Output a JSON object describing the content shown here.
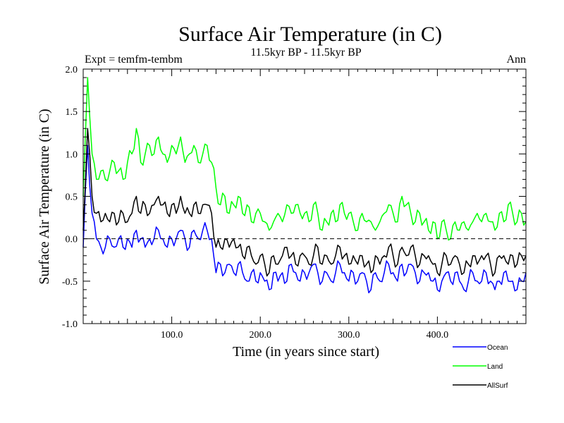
{
  "chart_data": {
    "type": "line",
    "title": "Surface Air Temperature (in C)",
    "subtitle": "11.5kyr BP - 11.5kyr BP",
    "left_label": "Expt = temfm-tembm",
    "right_label": "Ann",
    "xlabel": "Time (in years since start)",
    "ylabel": "Surface Air Temperature (in C)",
    "xlim": [
      0,
      500
    ],
    "ylim": [
      -1.0,
      2.0
    ],
    "x_ticks": [
      100,
      200,
      300,
      400
    ],
    "x_tick_labels": [
      "100.0",
      "200.0",
      "300.0",
      "400.0"
    ],
    "y_ticks": [
      -1.0,
      -0.5,
      0.0,
      0.5,
      1.0,
      1.5,
      2.0
    ],
    "y_tick_labels": [
      "-1.0",
      "-0.5",
      "0.0",
      "0.5",
      "1.0",
      "1.5",
      "2.0"
    ],
    "reference_line": 0.0,
    "legend_position": "bottom-right",
    "series": [
      {
        "name": "Ocean",
        "color": "#0000ff",
        "x": [
          0,
          5,
          10,
          15,
          20,
          25,
          30,
          35,
          40,
          45,
          50,
          55,
          60,
          65,
          70,
          75,
          80,
          85,
          90,
          95,
          100,
          105,
          110,
          115,
          120,
          125,
          130,
          135,
          140,
          145,
          150,
          155,
          160,
          165,
          170,
          175,
          180,
          185,
          190,
          195,
          200,
          205,
          210,
          215,
          220,
          225,
          230,
          235,
          240,
          245,
          250,
          255,
          260,
          265,
          270,
          275,
          280,
          285,
          290,
          295,
          300,
          305,
          310,
          315,
          320,
          325,
          330,
          335,
          340,
          345,
          350,
          355,
          360,
          365,
          370,
          375,
          380,
          385,
          390,
          395,
          400,
          405,
          410,
          415,
          420,
          425,
          430,
          435,
          440,
          445,
          450,
          455,
          460,
          465,
          470,
          475,
          480,
          485,
          490,
          495,
          500
        ],
        "values": [
          -0.1,
          1.1,
          0.3,
          0.0,
          -0.1,
          -0.1,
          0.0,
          -0.1,
          0.0,
          -0.1,
          0.0,
          -0.1,
          0.1,
          0.0,
          -0.1,
          0.0,
          0.0,
          0.1,
          0.0,
          -0.1,
          0.0,
          0.0,
          0.1,
          0.0,
          -0.1,
          0.1,
          0.0,
          0.1,
          0.1,
          0.0,
          -0.4,
          -0.3,
          -0.4,
          -0.3,
          -0.4,
          -0.3,
          -0.4,
          -0.5,
          -0.4,
          -0.5,
          -0.4,
          -0.5,
          -0.6,
          -0.4,
          -0.5,
          -0.4,
          -0.5,
          -0.3,
          -0.4,
          -0.5,
          -0.4,
          -0.4,
          -0.3,
          -0.4,
          -0.5,
          -0.4,
          -0.5,
          -0.4,
          -0.3,
          -0.4,
          -0.5,
          -0.4,
          -0.5,
          -0.4,
          -0.5,
          -0.6,
          -0.4,
          -0.5,
          -0.4,
          -0.3,
          -0.4,
          -0.5,
          -0.3,
          -0.4,
          -0.3,
          -0.4,
          -0.5,
          -0.4,
          -0.4,
          -0.5,
          -0.6,
          -0.5,
          -0.4,
          -0.5,
          -0.4,
          -0.5,
          -0.6,
          -0.5,
          -0.4,
          -0.5,
          -0.5,
          -0.4,
          -0.5,
          -0.6,
          -0.5,
          -0.4,
          -0.5,
          -0.5,
          -0.6,
          -0.5,
          -0.4
        ]
      },
      {
        "name": "Land",
        "color": "#00ff00",
        "x": [
          0,
          5,
          10,
          15,
          20,
          25,
          30,
          35,
          40,
          45,
          50,
          55,
          60,
          65,
          70,
          75,
          80,
          85,
          90,
          95,
          100,
          105,
          110,
          115,
          120,
          125,
          130,
          135,
          140,
          145,
          150,
          155,
          160,
          165,
          170,
          175,
          180,
          185,
          190,
          195,
          200,
          205,
          210,
          215,
          220,
          225,
          230,
          235,
          240,
          245,
          250,
          255,
          260,
          265,
          270,
          275,
          280,
          285,
          290,
          295,
          300,
          305,
          310,
          315,
          320,
          325,
          330,
          335,
          340,
          345,
          350,
          355,
          360,
          365,
          370,
          375,
          380,
          385,
          390,
          395,
          400,
          405,
          410,
          415,
          420,
          425,
          430,
          435,
          440,
          445,
          450,
          455,
          460,
          465,
          470,
          475,
          480,
          485,
          490,
          495,
          500
        ],
        "values": [
          0.5,
          1.9,
          1.0,
          0.7,
          0.8,
          0.7,
          0.8,
          0.9,
          0.8,
          0.7,
          0.9,
          1.0,
          1.3,
          0.9,
          1.0,
          1.1,
          1.0,
          1.2,
          1.0,
          0.9,
          1.1,
          1.0,
          1.2,
          0.9,
          1.0,
          1.1,
          0.9,
          1.0,
          1.1,
          0.9,
          0.6,
          0.4,
          0.5,
          0.3,
          0.4,
          0.5,
          0.3,
          0.4,
          0.2,
          0.3,
          0.3,
          0.2,
          0.1,
          0.2,
          0.3,
          0.2,
          0.4,
          0.3,
          0.4,
          0.3,
          0.3,
          0.2,
          0.4,
          0.3,
          0.1,
          0.2,
          0.3,
          0.2,
          0.4,
          0.3,
          0.3,
          0.2,
          0.1,
          0.3,
          0.2,
          0.2,
          0.1,
          0.2,
          0.3,
          0.4,
          0.3,
          0.2,
          0.5,
          0.4,
          0.3,
          0.2,
          0.3,
          0.2,
          0.1,
          0.2,
          0.0,
          0.2,
          0.1,
          0.0,
          0.2,
          0.1,
          0.2,
          0.1,
          0.2,
          0.3,
          0.2,
          0.3,
          0.2,
          0.1,
          0.3,
          0.2,
          0.4,
          0.3,
          0.2,
          0.3,
          0.2
        ]
      },
      {
        "name": "AllSurf",
        "color": "#000000",
        "x": [
          0,
          5,
          10,
          15,
          20,
          25,
          30,
          35,
          40,
          45,
          50,
          55,
          60,
          65,
          70,
          75,
          80,
          85,
          90,
          95,
          100,
          105,
          110,
          115,
          120,
          125,
          130,
          135,
          140,
          145,
          150,
          155,
          160,
          165,
          170,
          175,
          180,
          185,
          190,
          195,
          200,
          205,
          210,
          215,
          220,
          225,
          230,
          235,
          240,
          245,
          250,
          255,
          260,
          265,
          270,
          275,
          280,
          285,
          290,
          295,
          300,
          305,
          310,
          315,
          320,
          325,
          330,
          335,
          340,
          345,
          350,
          355,
          360,
          365,
          370,
          375,
          380,
          385,
          390,
          395,
          400,
          405,
          410,
          415,
          420,
          425,
          430,
          435,
          440,
          445,
          450,
          455,
          460,
          465,
          470,
          475,
          480,
          485,
          490,
          495,
          500
        ],
        "values": [
          0.1,
          1.3,
          0.5,
          0.3,
          0.2,
          0.3,
          0.2,
          0.3,
          0.2,
          0.3,
          0.2,
          0.3,
          0.5,
          0.3,
          0.4,
          0.3,
          0.4,
          0.5,
          0.4,
          0.3,
          0.4,
          0.3,
          0.5,
          0.3,
          0.3,
          0.4,
          0.3,
          0.4,
          0.4,
          0.3,
          -0.1,
          -0.1,
          0.0,
          -0.1,
          0.0,
          -0.1,
          -0.2,
          -0.1,
          -0.2,
          -0.3,
          -0.2,
          -0.3,
          -0.4,
          -0.2,
          -0.3,
          -0.2,
          -0.1,
          -0.2,
          -0.3,
          -0.2,
          -0.2,
          -0.3,
          -0.2,
          -0.1,
          -0.3,
          -0.2,
          -0.3,
          -0.2,
          -0.1,
          -0.2,
          -0.3,
          -0.2,
          -0.3,
          -0.2,
          -0.3,
          -0.4,
          -0.2,
          -0.3,
          -0.2,
          -0.1,
          -0.2,
          -0.3,
          -0.1,
          -0.2,
          -0.1,
          -0.2,
          -0.3,
          -0.2,
          -0.2,
          -0.3,
          -0.4,
          -0.3,
          -0.2,
          -0.3,
          -0.2,
          -0.3,
          -0.4,
          -0.3,
          -0.2,
          -0.3,
          -0.2,
          -0.2,
          -0.3,
          -0.4,
          -0.2,
          -0.2,
          -0.3,
          -0.2,
          -0.3,
          -0.2,
          -0.2
        ]
      }
    ]
  }
}
